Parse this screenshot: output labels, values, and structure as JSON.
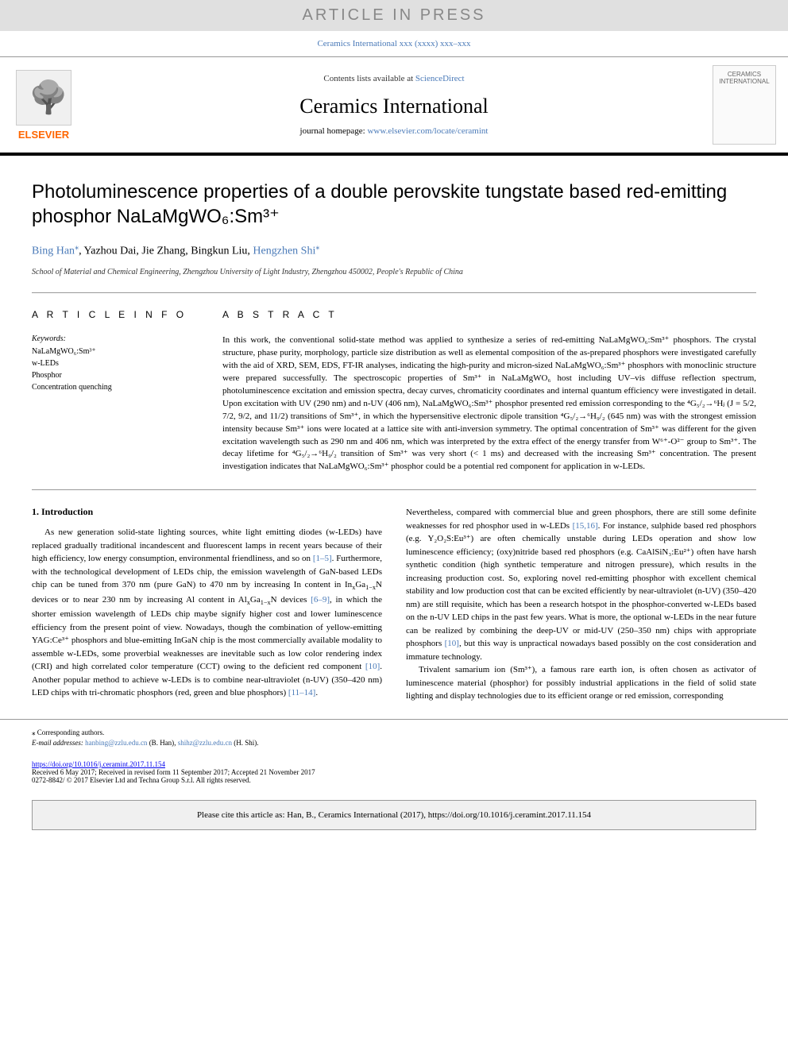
{
  "banner": {
    "text": "ARTICLE IN PRESS",
    "background_color": "#e0e0e0",
    "text_color": "#888888"
  },
  "citation_header": "Ceramics International xxx (xxxx) xxx–xxx",
  "header": {
    "contents_prefix": "Contents lists available at ",
    "contents_link": "ScienceDirect",
    "journal_name": "Ceramics International",
    "homepage_prefix": "journal homepage: ",
    "homepage_link": "www.elsevier.com/locate/ceramint",
    "publisher": "ELSEVIER",
    "cover_label": "CERAMICS INTERNATIONAL"
  },
  "article": {
    "title_html": "Photoluminescence properties of a double perovskite tungstate based red-emitting phosphor NaLaMgWO₆:Sm³⁺",
    "authors": [
      {
        "name": "Bing Han",
        "corresponding": true
      },
      {
        "name": "Yazhou Dai",
        "corresponding": false
      },
      {
        "name": "Jie Zhang",
        "corresponding": false
      },
      {
        "name": "Bingkun Liu",
        "corresponding": false
      },
      {
        "name": "Hengzhen Shi",
        "corresponding": true
      }
    ],
    "affiliation": "School of Material and Chemical Engineering, Zhengzhou University of Light Industry, Zhengzhou 450002, People's Republic of China"
  },
  "article_info": {
    "heading": "A R T I C L E   I N F O",
    "keywords_label": "Keywords:",
    "keywords": [
      "NaLaMgWO₆:Sm³⁺",
      "w-LEDs",
      "Phosphor",
      "Concentration quenching"
    ]
  },
  "abstract": {
    "heading": "A B S T R A C T",
    "text": "In this work, the conventional solid-state method was applied to synthesize a series of red-emitting NaLaMgWO₆:Sm³⁺ phosphors. The crystal structure, phase purity, morphology, particle size distribution as well as elemental composition of the as-prepared phosphors were investigated carefully with the aid of XRD, SEM, EDS, FT-IR analyses, indicating the high-purity and micron-sized NaLaMgWO₆:Sm³⁺ phosphors with monoclinic structure were prepared successfully. The spectroscopic properties of Sm³⁺ in NaLaMgWO₆ host including UV–vis diffuse reflection spectrum, photoluminescence excitation and emission spectra, decay curves, chromaticity coordinates and internal quantum efficiency were investigated in detail. Upon excitation with UV (290 nm) and n-UV (406 nm), NaLaMgWO₆:Sm³⁺ phosphor presented red emission corresponding to the ⁴G₅/₂→⁶Hⱼ (J = 5/2, 7/2, 9/2, and 11/2) transitions of Sm³⁺, in which the hypersensitive electronic dipole transition ⁴G₅/₂→⁶H₉/₂ (645 nm) was with the strongest emission intensity because Sm³⁺ ions were located at a lattice site with anti-inversion symmetry. The optimal concentration of Sm³⁺ was different for the given excitation wavelength such as 290 nm and 406 nm, which was interpreted by the extra effect of the energy transfer from W⁶⁺-O²⁻ group to Sm³⁺. The decay lifetime for ⁴G₅/₂→⁶H₉/₂ transition of Sm³⁺ was very short (< 1 ms) and decreased with the increasing Sm³⁺ concentration. The present investigation indicates that NaLaMgWO₆:Sm³⁺ phosphor could be a potential red component for application in w-LEDs."
  },
  "body": {
    "section_number": "1.",
    "section_title": "Introduction",
    "col1_html": "As new generation solid-state lighting sources, white light emitting diodes (w-LEDs) have replaced gradually traditional incandescent and fluorescent lamps in recent years because of their high efficiency, low energy consumption, environmental friendliness, and so on <span class='ref'>[1–5]</span>. Furthermore, with the technological development of LEDs chip, the emission wavelength of GaN-based LEDs chip can be tuned from 370 nm (pure GaN) to 470 nm by increasing In content in In<sub>x</sub>Ga<sub>1−x</sub>N devices or to near 230 nm by increasing Al content in Al<sub>x</sub>Ga<sub>1−x</sub>N devices <span class='ref'>[6–9]</span>, in which the shorter emission wavelength of LEDs chip maybe signify higher cost and lower luminescence efficiency from the present point of view. Nowadays, though the combination of yellow-emitting YAG:Ce³⁺ phosphors and blue-emitting InGaN chip is the most commercially available modality to assemble w-LEDs, some proverbial weaknesses are inevitable such as low color rendering index (CRI) and high correlated color temperature (CCT) owing to the deficient red component <span class='ref'>[10]</span>. Another popular method to achieve w-LEDs is to combine near-ultraviolet (n-UV) (350–420 nm) LED chips with tri-chromatic phosphors (red, green and blue phosphors) <span class='ref'>[11–14]</span>.",
    "col2_p1_html": "Nevertheless, compared with commercial blue and green phosphors, there are still some definite weaknesses for red phosphor used in w-LEDs <span class='ref'>[15,16]</span>. For instance, sulphide based red phosphors (e.g. Y₂O₂S:Eu³⁺) are often chemically unstable during LEDs operation and show low luminescence efficiency; (oxy)nitride based red phosphors (e.g. CaAlSiN₃:Eu²⁺) often have harsh synthetic condition (high synthetic temperature and nitrogen pressure), which results in the increasing production cost. So, exploring novel red-emitting phosphor with excellent chemical stability and low production cost that can be excited efficiently by near-ultraviolet (n-UV) (350–420 nm) are still requisite, which has been a research hotspot in the phosphor-converted w-LEDs based on the n-UV LED chips in the past few years. What is more, the optional w-LEDs in the near future can be realized by combining the deep-UV or mid-UV (250–350 nm) chips with appropriate phosphors <span class='ref'>[10]</span>, but this way is unpractical nowadays based possibly on the cost consideration and immature technology.",
    "col2_p2_html": "Trivalent samarium ion (Sm³⁺), a famous rare earth ion, is often chosen as activator of luminescence material (phosphor) for possibly industrial applications in the field of solid state lighting and display technologies due to its efficient orange or red emission, corresponding"
  },
  "footnotes": {
    "corresponding_label": "⁎ Corresponding authors.",
    "email_label": "E-mail addresses: ",
    "emails": [
      {
        "addr": "hanbing@zzlu.edu.cn",
        "person": "(B. Han)"
      },
      {
        "addr": "shihz@zzlu.edu.cn",
        "person": "(H. Shi)."
      }
    ]
  },
  "meta": {
    "doi": "https://doi.org/10.1016/j.ceramint.2017.11.154",
    "received": "Received 6 May 2017; Received in revised form 11 September 2017; Accepted 21 November 2017",
    "copyright": "0272-8842/ © 2017 Elsevier Ltd and Techna Group S.r.l. All rights reserved."
  },
  "cite_box": "Please cite this article as: Han, B., Ceramics International (2017), https://doi.org/10.1016/j.ceramint.2017.11.154",
  "colors": {
    "link_color": "#4a7ab8",
    "publisher_orange": "#ff6600",
    "banner_bg": "#e0e0e0"
  }
}
